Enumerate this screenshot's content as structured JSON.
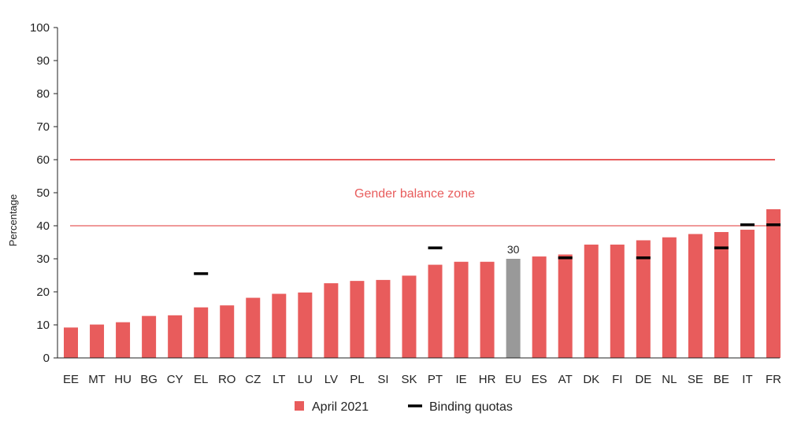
{
  "chart_data": {
    "type": "bar",
    "ylabel": "Percentage",
    "ylim": [
      0,
      100
    ],
    "yticks": [
      "0",
      "10",
      "20",
      "30",
      "40",
      "50",
      "60",
      "70",
      "80",
      "90",
      "100"
    ],
    "categories": [
      "EE",
      "MT",
      "HU",
      "BG",
      "CY",
      "EL",
      "RO",
      "CZ",
      "LT",
      "LU",
      "LV",
      "PL",
      "SI",
      "SK",
      "PT",
      "IE",
      "HR",
      "EU",
      "ES",
      "AT",
      "DK",
      "FI",
      "DE",
      "NL",
      "SE",
      "BE",
      "IT",
      "FR"
    ],
    "series": [
      {
        "name": "April 2021",
        "values": [
          9.2,
          10.1,
          10.8,
          12.7,
          12.9,
          15.3,
          15.9,
          18.2,
          19.4,
          19.8,
          22.6,
          23.3,
          23.6,
          24.9,
          28.2,
          29.1,
          29.1,
          30.0,
          30.7,
          31.3,
          34.3,
          34.3,
          35.6,
          36.5,
          37.5,
          38.1,
          38.8,
          45.0
        ],
        "color": "#e85c5c"
      }
    ],
    "highlight": {
      "category": "EU",
      "color": "#999999",
      "label": "30"
    },
    "binding_quotas": {
      "name": "Binding quotas",
      "color": "#000000",
      "points": [
        {
          "category": "EL",
          "value": 25.5
        },
        {
          "category": "PT",
          "value": 33.3
        },
        {
          "category": "AT",
          "value": 30.3
        },
        {
          "category": "DE",
          "value": 30.3
        },
        {
          "category": "BE",
          "value": 33.3
        },
        {
          "category": "IT",
          "value": 40.3
        },
        {
          "category": "FR",
          "value": 40.3
        }
      ]
    },
    "reference_lines": [
      {
        "value": 60,
        "color": "#e85c5c"
      },
      {
        "value": 40,
        "color": "#e85c5c"
      }
    ],
    "zone_label": {
      "text": "Gender balance zone",
      "value": 50,
      "color": "#e85c5c"
    },
    "legend": {
      "position": "bottom-center"
    }
  }
}
